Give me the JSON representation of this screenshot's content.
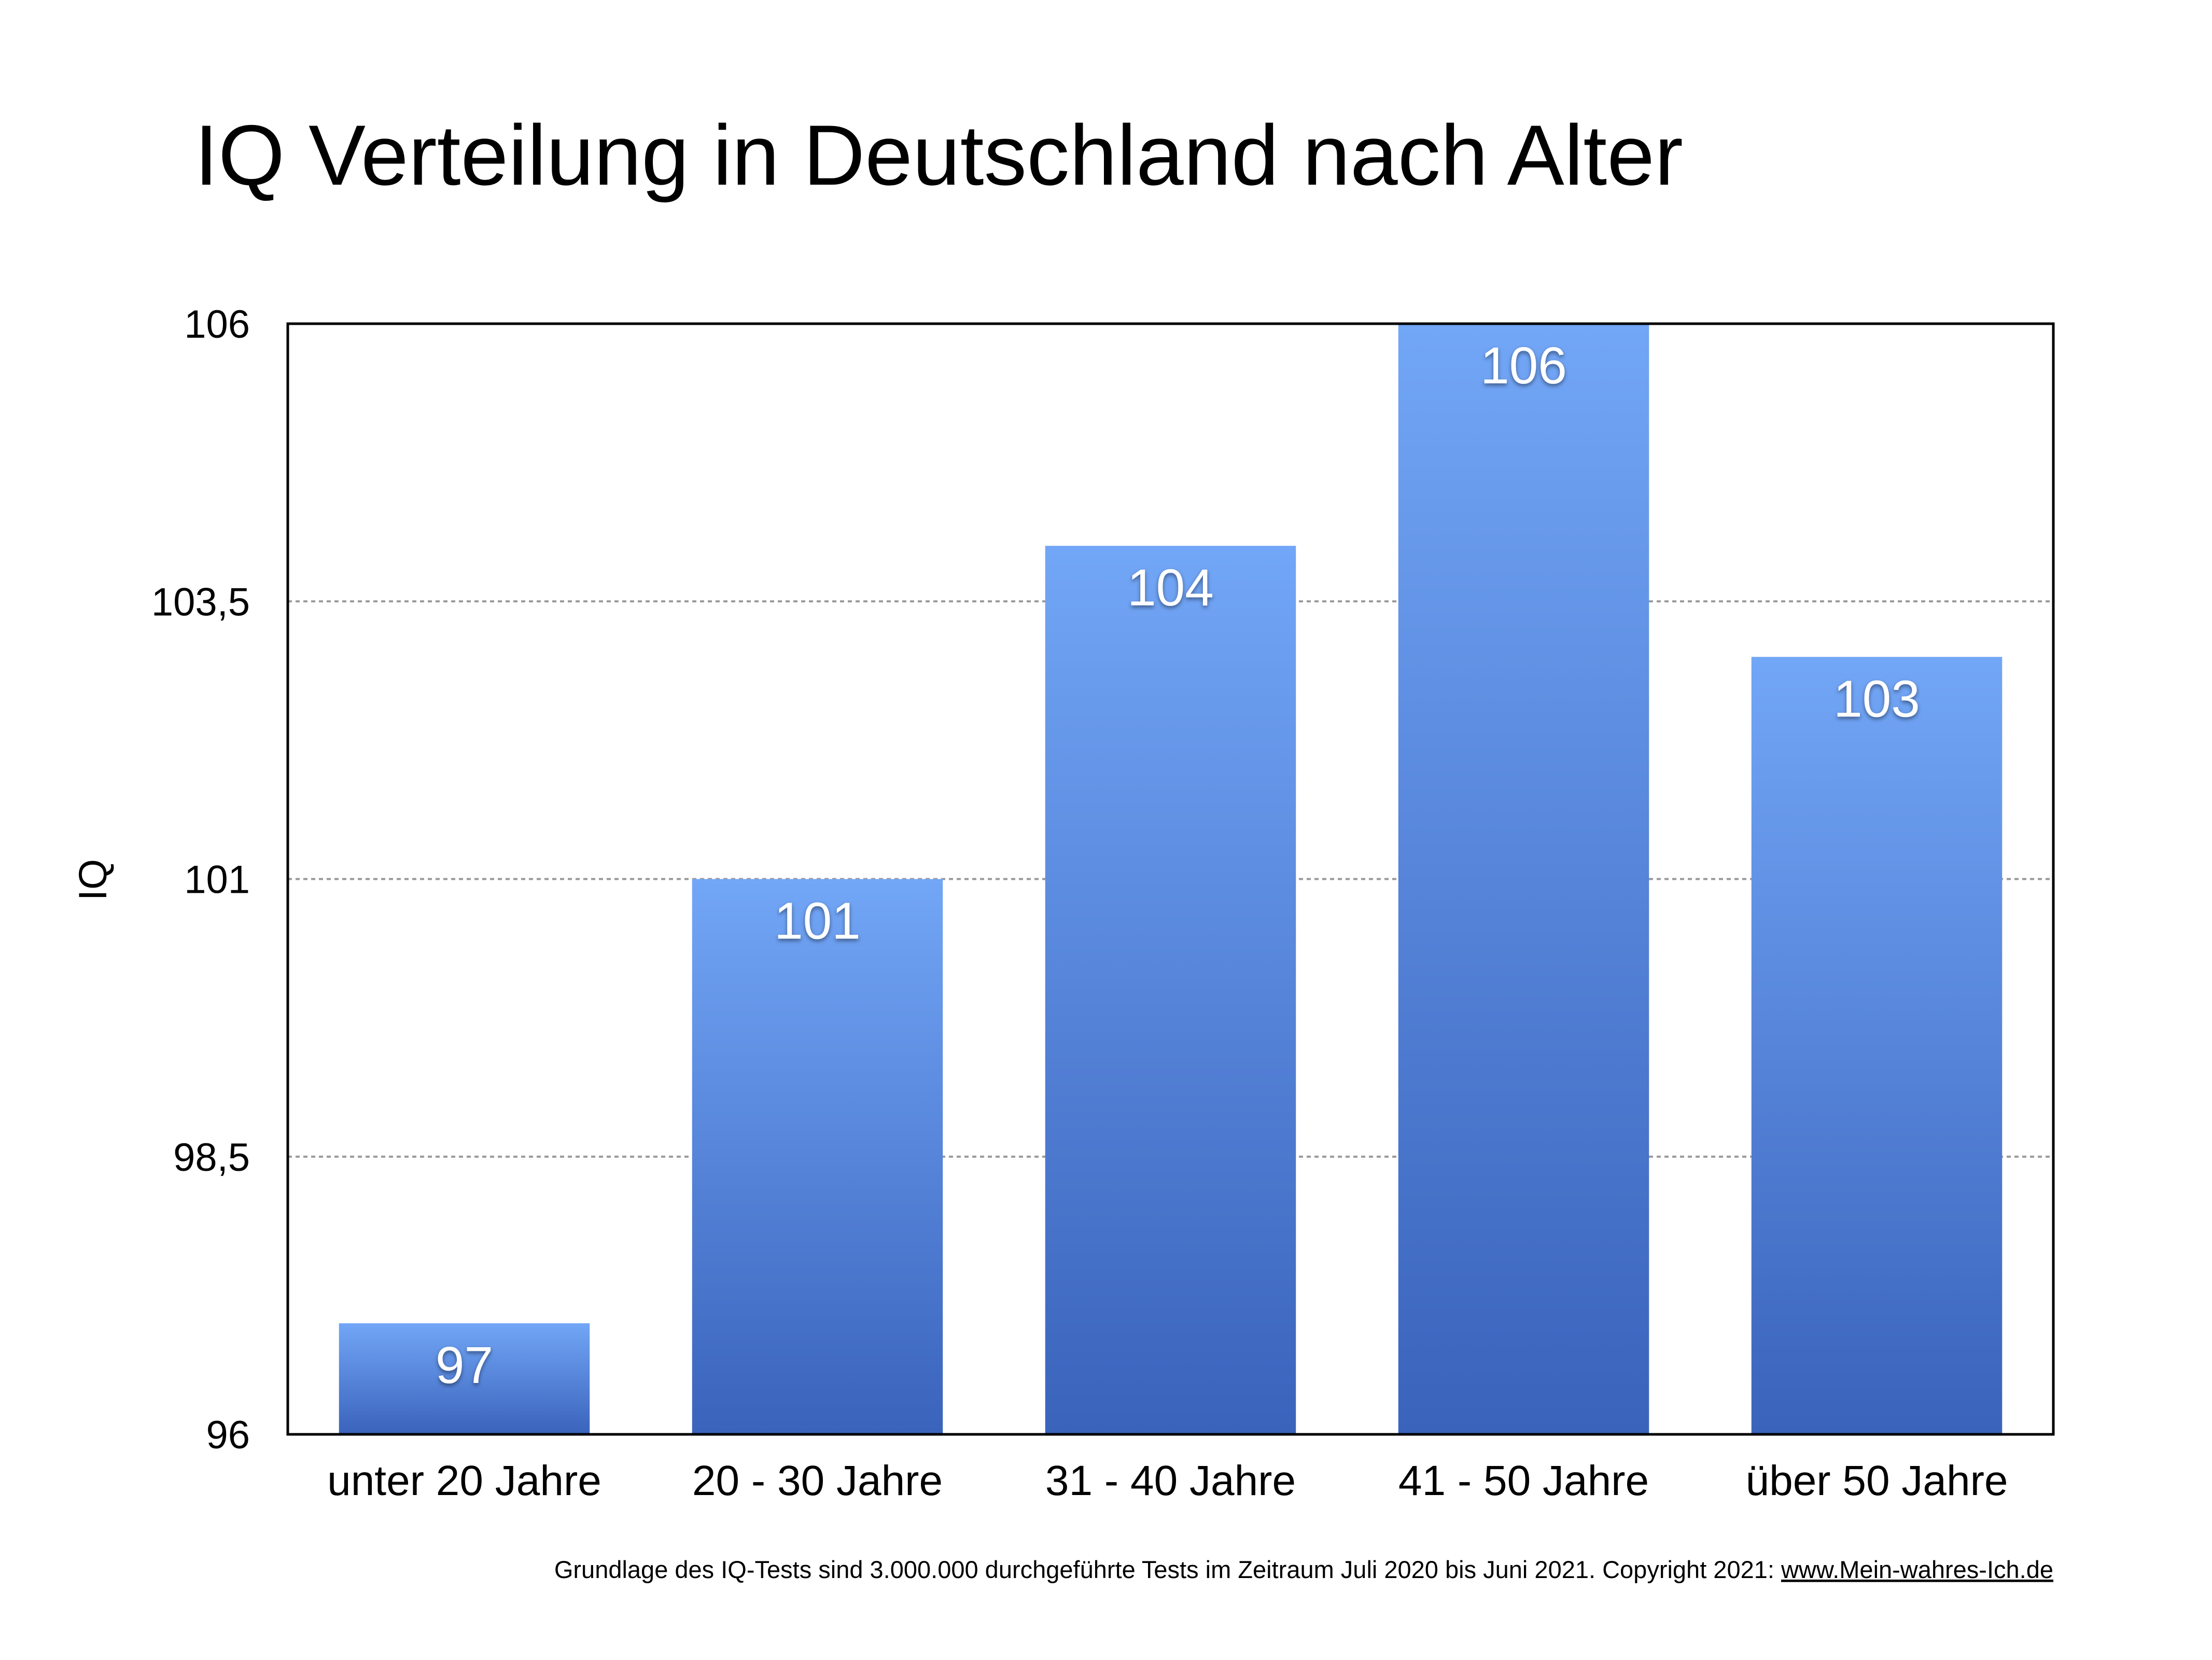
{
  "chart_data": {
    "type": "bar",
    "title": "IQ Verteilung in Deutschland nach Alter",
    "xlabel": "",
    "ylabel": "IQ",
    "categories": [
      "unter 20 Jahre",
      "20 - 30 Jahre",
      "31 - 40 Jahre",
      "41 - 50 Jahre",
      "über 50 Jahre"
    ],
    "values": [
      97,
      101,
      104,
      106,
      103
    ],
    "value_labels": [
      "97",
      "101",
      "104",
      "106",
      "103"
    ],
    "ylim": [
      96,
      106
    ],
    "yticks": [
      96,
      98.5,
      101,
      103.5,
      106
    ],
    "ytick_labels": [
      "96",
      "98,5",
      "101",
      "103,5",
      "106"
    ],
    "grid": "horizontal dotted",
    "legend": "none",
    "colors": {
      "bar_top": "#72a6f6",
      "bar_bottom": "#3a63bc",
      "grid": "#999999"
    }
  },
  "footer": {
    "text": "Grundlage des IQ-Tests sind 3.000.000 durchgeführte Tests im Zeitraum Juli 2020 bis Juni 2021. Copyright 2021: ",
    "link": "www.Mein-wahres-Ich.de"
  }
}
